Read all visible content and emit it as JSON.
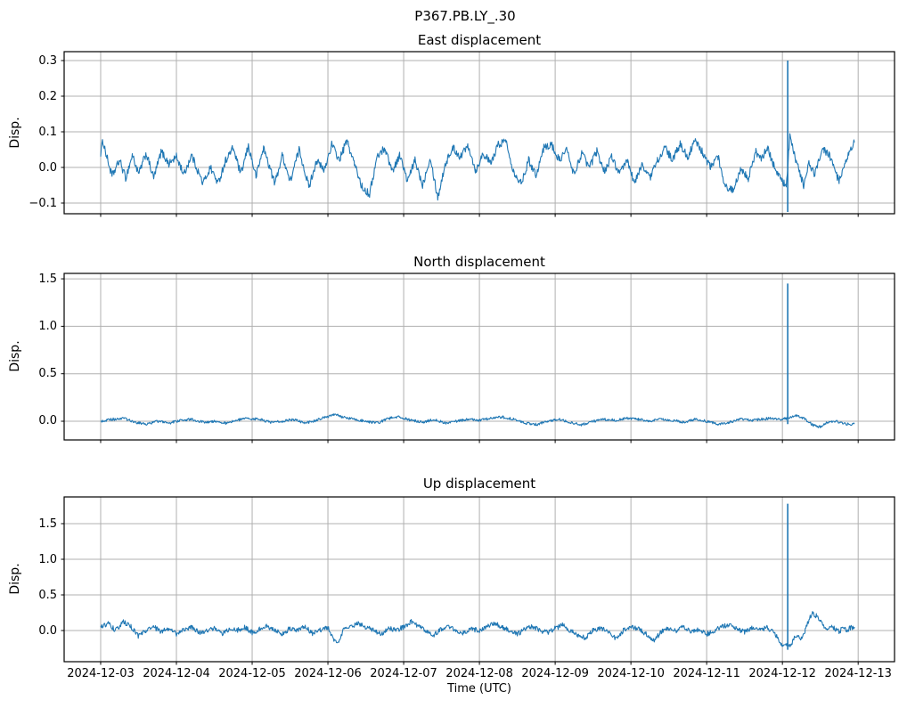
{
  "figure": {
    "suptitle": "P367.PB.LY_.30",
    "line_color": "#1f77b4",
    "grid_color": "#b0b0b0",
    "axis_color": "#000000",
    "background": "#ffffff"
  },
  "x_axis": {
    "label": "Time (UTC)",
    "tick_days": [
      0,
      1,
      2,
      3,
      4,
      5,
      6,
      7,
      8,
      9,
      10
    ],
    "tick_labels": [
      "2024-12-03",
      "2024-12-04",
      "2024-12-05",
      "2024-12-06",
      "2024-12-07",
      "2024-12-08",
      "2024-12-09",
      "2024-12-10",
      "2024-12-11",
      "2024-12-12",
      "2024-12-13"
    ],
    "xlim_days": [
      -0.482,
      10.48
    ]
  },
  "chart_data": [
    {
      "type": "line",
      "title": "East displacement",
      "ylabel": "Disp.",
      "ylim": [
        -0.13,
        0.325
      ],
      "ytick_values": [
        -0.1,
        0.0,
        0.1,
        0.2,
        0.3
      ],
      "ytick_labels": [
        "−0.1",
        "0.0",
        "0.1",
        "0.2",
        "0.3"
      ],
      "grid": true,
      "noise": 0.011,
      "spike": {
        "day": 9.07,
        "low": -0.125,
        "high": 0.3
      },
      "points": [
        [
          0,
          0.04
        ],
        [
          0.03,
          0.075
        ],
        [
          0.08,
          0.03
        ],
        [
          0.15,
          -0.025
        ],
        [
          0.25,
          0.02
        ],
        [
          0.33,
          -0.03
        ],
        [
          0.42,
          0.035
        ],
        [
          0.5,
          -0.02
        ],
        [
          0.6,
          0.04
        ],
        [
          0.7,
          -0.03
        ],
        [
          0.8,
          0.045
        ],
        [
          0.9,
          0.01
        ],
        [
          1,
          0.03
        ],
        [
          1.1,
          -0.02
        ],
        [
          1.2,
          0.035
        ],
        [
          1.35,
          -0.045
        ],
        [
          1.45,
          0
        ],
        [
          1.55,
          -0.045
        ],
        [
          1.65,
          0.02
        ],
        [
          1.75,
          0.055
        ],
        [
          1.85,
          -0.02
        ],
        [
          1.95,
          0.06
        ],
        [
          2.05,
          -0.025
        ],
        [
          2.15,
          0.055
        ],
        [
          2.3,
          -0.045
        ],
        [
          2.4,
          0.035
        ],
        [
          2.5,
          -0.04
        ],
        [
          2.62,
          0.05
        ],
        [
          2.75,
          -0.055
        ],
        [
          2.85,
          0.02
        ],
        [
          2.95,
          -0.01
        ],
        [
          3.05,
          0.065
        ],
        [
          3.15,
          0.02
        ],
        [
          3.25,
          0.075
        ],
        [
          3.35,
          0.01
        ],
        [
          3.45,
          -0.055
        ],
        [
          3.55,
          -0.075
        ],
        [
          3.65,
          0.03
        ],
        [
          3.75,
          0.055
        ],
        [
          3.85,
          -0.01
        ],
        [
          3.95,
          0.035
        ],
        [
          4.05,
          -0.04
        ],
        [
          4.15,
          0.02
        ],
        [
          4.25,
          -0.05
        ],
        [
          4.35,
          0.03
        ],
        [
          4.45,
          -0.085
        ],
        [
          4.55,
          0.01
        ],
        [
          4.65,
          0.055
        ],
        [
          4.75,
          0.03
        ],
        [
          4.85,
          0.065
        ],
        [
          4.95,
          -0.01
        ],
        [
          5.05,
          0.04
        ],
        [
          5.15,
          0.01
        ],
        [
          5.25,
          0.065
        ],
        [
          5.35,
          0.075
        ],
        [
          5.45,
          -0.01
        ],
        [
          5.55,
          -0.045
        ],
        [
          5.65,
          0.02
        ],
        [
          5.75,
          -0.02
        ],
        [
          5.85,
          0.055
        ],
        [
          5.95,
          0.065
        ],
        [
          6.05,
          0.02
        ],
        [
          6.15,
          0.05
        ],
        [
          6.25,
          -0.02
        ],
        [
          6.35,
          0.04
        ],
        [
          6.45,
          0
        ],
        [
          6.55,
          0.045
        ],
        [
          6.65,
          -0.01
        ],
        [
          6.75,
          0.03
        ],
        [
          6.85,
          -0.02
        ],
        [
          6.95,
          0.02
        ],
        [
          7.05,
          -0.045
        ],
        [
          7.15,
          0.01
        ],
        [
          7.25,
          -0.03
        ],
        [
          7.35,
          0.02
        ],
        [
          7.45,
          0.055
        ],
        [
          7.55,
          0.02
        ],
        [
          7.65,
          0.065
        ],
        [
          7.75,
          0.03
        ],
        [
          7.85,
          0.075
        ],
        [
          7.95,
          0.04
        ],
        [
          8.05,
          0
        ],
        [
          8.15,
          0.03
        ],
        [
          8.25,
          -0.055
        ],
        [
          8.35,
          -0.065
        ],
        [
          8.45,
          0
        ],
        [
          8.55,
          -0.03
        ],
        [
          8.65,
          0.045
        ],
        [
          8.72,
          0.02
        ],
        [
          8.8,
          0.055
        ],
        [
          8.88,
          0.01
        ],
        [
          8.95,
          -0.02
        ],
        [
          9.02,
          -0.045
        ],
        [
          9.05,
          -0.06
        ],
        [
          9.1,
          0.09
        ],
        [
          9.15,
          0.04
        ],
        [
          9.22,
          -0.01
        ],
        [
          9.28,
          -0.05
        ],
        [
          9.35,
          0.01
        ],
        [
          9.42,
          -0.02
        ],
        [
          9.5,
          0.035
        ],
        [
          9.55,
          0.05
        ],
        [
          9.6,
          0.04
        ],
        [
          9.65,
          0.02
        ],
        [
          9.7,
          -0.015
        ],
        [
          9.75,
          -0.04
        ],
        [
          9.82,
          0
        ],
        [
          9.88,
          0.04
        ],
        [
          9.95,
          0.07
        ]
      ]
    },
    {
      "type": "line",
      "title": "North displacement",
      "ylabel": "Disp.",
      "ylim": [
        -0.197,
        1.557
      ],
      "ytick_values": [
        0.0,
        0.5,
        1.0,
        1.5
      ],
      "ytick_labels": [
        "0.0",
        "0.5",
        "1.0",
        "1.5"
      ],
      "grid": true,
      "noise": 0.014,
      "spike": {
        "day": 9.07,
        "low": -0.03,
        "high": 1.45
      },
      "points": [
        [
          0,
          0
        ],
        [
          0.15,
          0.02
        ],
        [
          0.3,
          0.03
        ],
        [
          0.45,
          -0.01
        ],
        [
          0.6,
          -0.03
        ],
        [
          0.75,
          0
        ],
        [
          0.9,
          -0.02
        ],
        [
          1.05,
          0.01
        ],
        [
          1.2,
          0.02
        ],
        [
          1.35,
          -0.01
        ],
        [
          1.5,
          0
        ],
        [
          1.65,
          -0.02
        ],
        [
          1.8,
          0.01
        ],
        [
          1.95,
          0.03
        ],
        [
          2.1,
          0.02
        ],
        [
          2.25,
          -0.01
        ],
        [
          2.4,
          0
        ],
        [
          2.55,
          0.02
        ],
        [
          2.7,
          -0.02
        ],
        [
          2.85,
          0.01
        ],
        [
          3,
          0.05
        ],
        [
          3.1,
          0.075
        ],
        [
          3.2,
          0.04
        ],
        [
          3.35,
          0.02
        ],
        [
          3.5,
          0
        ],
        [
          3.65,
          -0.02
        ],
        [
          3.8,
          0.03
        ],
        [
          3.95,
          0.045
        ],
        [
          4.1,
          0.01
        ],
        [
          4.25,
          -0.01
        ],
        [
          4.4,
          0.02
        ],
        [
          4.55,
          -0.02
        ],
        [
          4.7,
          0
        ],
        [
          4.85,
          0.02
        ],
        [
          5,
          0.01
        ],
        [
          5.15,
          0.03
        ],
        [
          5.3,
          0.045
        ],
        [
          5.45,
          0.02
        ],
        [
          5.6,
          -0.02
        ],
        [
          5.75,
          -0.035
        ],
        [
          5.9,
          0
        ],
        [
          6.05,
          0.02
        ],
        [
          6.2,
          -0.01
        ],
        [
          6.35,
          -0.04
        ],
        [
          6.5,
          0
        ],
        [
          6.65,
          0.02
        ],
        [
          6.8,
          0.01
        ],
        [
          6.95,
          0.03
        ],
        [
          7.1,
          0.02
        ],
        [
          7.25,
          0
        ],
        [
          7.4,
          0.02
        ],
        [
          7.55,
          0.01
        ],
        [
          7.7,
          -0.01
        ],
        [
          7.85,
          0.02
        ],
        [
          8,
          0
        ],
        [
          8.15,
          -0.03
        ],
        [
          8.3,
          -0.01
        ],
        [
          8.45,
          0.02
        ],
        [
          8.6,
          0.01
        ],
        [
          8.75,
          0.025
        ],
        [
          8.9,
          0.03
        ],
        [
          9,
          0.02
        ],
        [
          9.05,
          0.03
        ],
        [
          9.12,
          0.05
        ],
        [
          9.2,
          0.06
        ],
        [
          9.3,
          0.02
        ],
        [
          9.4,
          -0.04
        ],
        [
          9.5,
          -0.06
        ],
        [
          9.6,
          -0.01
        ],
        [
          9.7,
          0
        ],
        [
          9.8,
          -0.02
        ],
        [
          9.9,
          -0.035
        ],
        [
          9.95,
          -0.03
        ]
      ]
    },
    {
      "type": "line",
      "title": "Up displacement",
      "ylabel": "Disp.",
      "ylim": [
        -0.4375,
        1.875
      ],
      "ytick_values": [
        0.0,
        0.5,
        1.0,
        1.5
      ],
      "ytick_labels": [
        "0.0",
        "0.5",
        "1.0",
        "1.5"
      ],
      "grid": true,
      "noise": 0.035,
      "spike": {
        "day": 9.07,
        "low": -0.27,
        "high": 1.78
      },
      "points": [
        [
          0,
          0.05
        ],
        [
          0.1,
          0.1
        ],
        [
          0.2,
          0
        ],
        [
          0.3,
          0.12
        ],
        [
          0.4,
          0.05
        ],
        [
          0.5,
          -0.08
        ],
        [
          0.6,
          0
        ],
        [
          0.7,
          0.05
        ],
        [
          0.8,
          -0.02
        ],
        [
          0.9,
          0.03
        ],
        [
          1,
          -0.05
        ],
        [
          1.1,
          0.02
        ],
        [
          1.2,
          0.05
        ],
        [
          1.3,
          -0.03
        ],
        [
          1.4,
          0
        ],
        [
          1.5,
          0.04
        ],
        [
          1.6,
          -0.05
        ],
        [
          1.7,
          0.02
        ],
        [
          1.8,
          0
        ],
        [
          1.9,
          0.05
        ],
        [
          2,
          -0.03
        ],
        [
          2.1,
          0.02
        ],
        [
          2.2,
          0.06
        ],
        [
          2.3,
          0
        ],
        [
          2.4,
          -0.05
        ],
        [
          2.5,
          0.03
        ],
        [
          2.6,
          0
        ],
        [
          2.7,
          0.05
        ],
        [
          2.8,
          -0.04
        ],
        [
          2.9,
          0.01
        ],
        [
          3,
          0.04
        ],
        [
          3.12,
          -0.2
        ],
        [
          3.2,
          0
        ],
        [
          3.3,
          0.05
        ],
        [
          3.4,
          0.1
        ],
        [
          3.5,
          0.05
        ],
        [
          3.6,
          0
        ],
        [
          3.7,
          -0.05
        ],
        [
          3.8,
          0.03
        ],
        [
          3.9,
          0
        ],
        [
          4,
          0.05
        ],
        [
          4.1,
          0.12
        ],
        [
          4.2,
          0.05
        ],
        [
          4.3,
          0
        ],
        [
          4.4,
          -0.06
        ],
        [
          4.5,
          0.02
        ],
        [
          4.6,
          0.05
        ],
        [
          4.7,
          0
        ],
        [
          4.8,
          -0.04
        ],
        [
          4.9,
          0.02
        ],
        [
          5,
          0
        ],
        [
          5.1,
          0.06
        ],
        [
          5.2,
          0.1
        ],
        [
          5.3,
          0.05
        ],
        [
          5.4,
          0
        ],
        [
          5.5,
          -0.05
        ],
        [
          5.6,
          0.02
        ],
        [
          5.7,
          0.05
        ],
        [
          5.8,
          0
        ],
        [
          5.9,
          -0.03
        ],
        [
          6,
          0.03
        ],
        [
          6.1,
          0.08
        ],
        [
          6.2,
          0
        ],
        [
          6.3,
          -0.06
        ],
        [
          6.4,
          -0.1
        ],
        [
          6.5,
          0
        ],
        [
          6.6,
          0.04
        ],
        [
          6.7,
          -0.02
        ],
        [
          6.8,
          -0.12
        ],
        [
          6.9,
          0
        ],
        [
          7,
          0.05
        ],
        [
          7.1,
          0.02
        ],
        [
          7.2,
          -0.05
        ],
        [
          7.3,
          -0.15
        ],
        [
          7.4,
          -0.02
        ],
        [
          7.5,
          0.03
        ],
        [
          7.6,
          0
        ],
        [
          7.7,
          0.05
        ],
        [
          7.8,
          -0.02
        ],
        [
          7.9,
          0.02
        ],
        [
          8,
          -0.05
        ],
        [
          8.1,
          0
        ],
        [
          8.2,
          0.05
        ],
        [
          8.3,
          0.08
        ],
        [
          8.4,
          0.02
        ],
        [
          8.5,
          -0.02
        ],
        [
          8.6,
          0.05
        ],
        [
          8.7,
          0
        ],
        [
          8.8,
          0.04
        ],
        [
          8.9,
          -0.05
        ],
        [
          9,
          -0.2
        ],
        [
          9.07,
          -0.19
        ],
        [
          9.12,
          -0.22
        ],
        [
          9.15,
          -0.1
        ],
        [
          9.2,
          -0.05
        ],
        [
          9.25,
          -0.12
        ],
        [
          9.3,
          0
        ],
        [
          9.35,
          0.15
        ],
        [
          9.4,
          0.25
        ],
        [
          9.45,
          0.2
        ],
        [
          9.5,
          0.12
        ],
        [
          9.55,
          0.05
        ],
        [
          9.6,
          0
        ],
        [
          9.65,
          0.05
        ],
        [
          9.7,
          0.02
        ],
        [
          9.75,
          -0.02
        ],
        [
          9.8,
          0.05
        ],
        [
          9.85,
          0
        ],
        [
          9.9,
          0.04
        ],
        [
          9.95,
          0.05
        ]
      ]
    }
  ]
}
